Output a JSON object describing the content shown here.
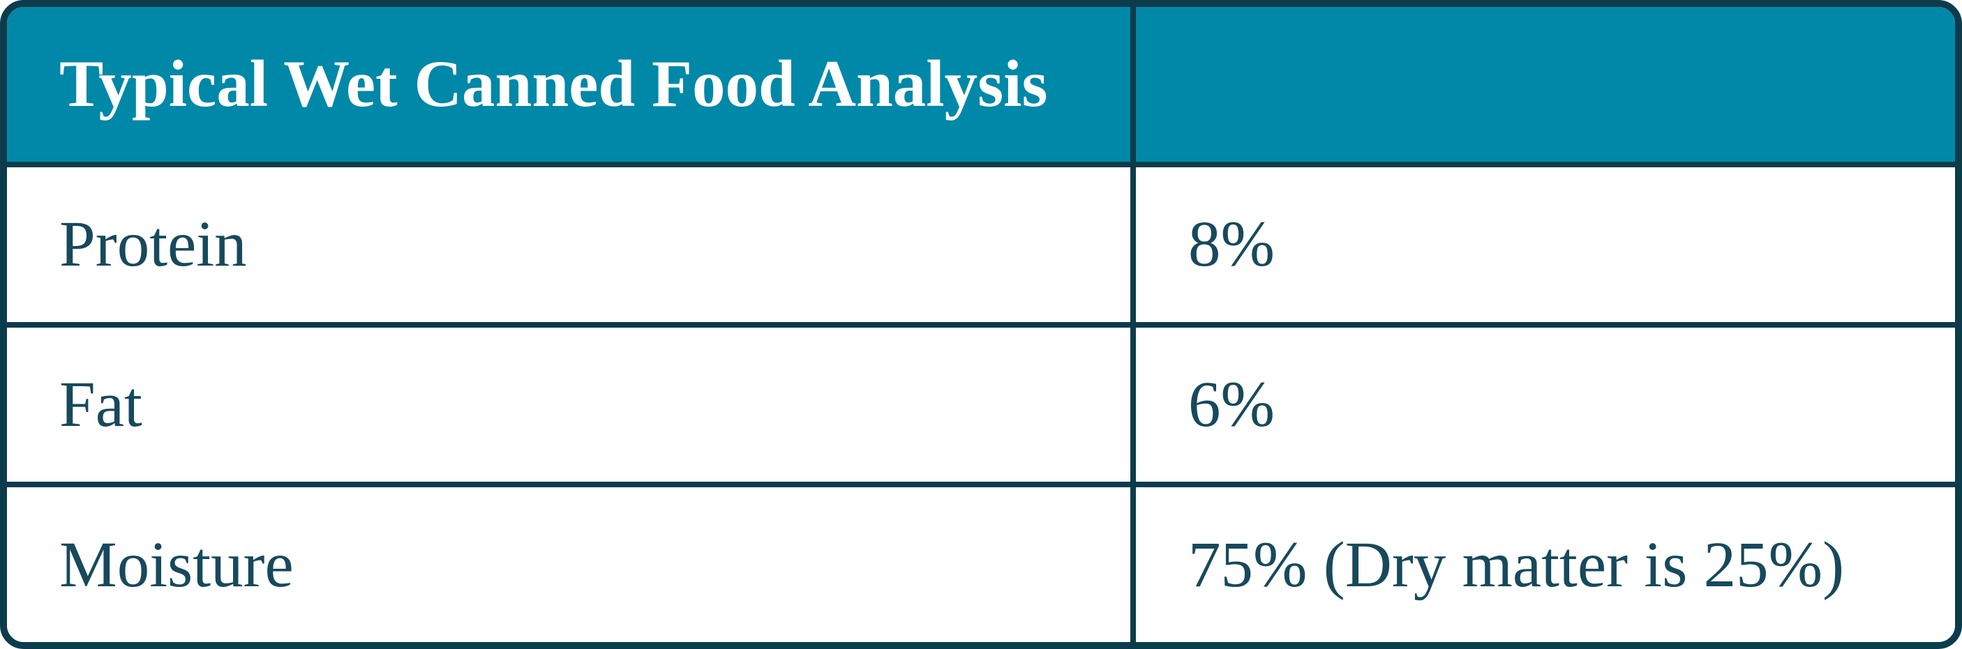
{
  "table": {
    "header": {
      "title": "Typical Wet Canned Food Analysis",
      "value": ""
    },
    "rows": [
      {
        "label": "Protein",
        "value": "8%"
      },
      {
        "label": "Fat",
        "value": "6%"
      },
      {
        "label": "Moisture",
        "value": "75% (Dry matter is 25%)"
      }
    ],
    "colors": {
      "header_bg": "#0088a8",
      "border": "#0c3c4c",
      "header_text": "#ffffff",
      "body_text": "#17495c",
      "row_bg": "#ffffff"
    }
  }
}
